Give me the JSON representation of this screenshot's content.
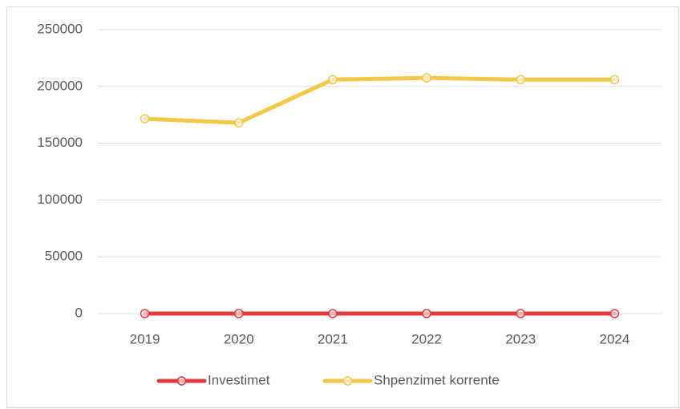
{
  "chart_data": {
    "type": "line",
    "categories": [
      "2019",
      "2020",
      "2021",
      "2022",
      "2023",
      "2024"
    ],
    "series": [
      {
        "name": "Investimet",
        "color": "#e03b3f",
        "values": [
          0,
          0,
          0,
          0,
          0,
          0
        ]
      },
      {
        "name": "Shpenzimet korrente",
        "color": "#f3c747",
        "values": [
          171500,
          168000,
          206000,
          207500,
          206000,
          206000
        ]
      }
    ],
    "ylim": [
      0,
      250000
    ],
    "yticks": [
      0,
      50000,
      100000,
      150000,
      200000,
      250000
    ],
    "grid": true,
    "legend": "bottom"
  }
}
